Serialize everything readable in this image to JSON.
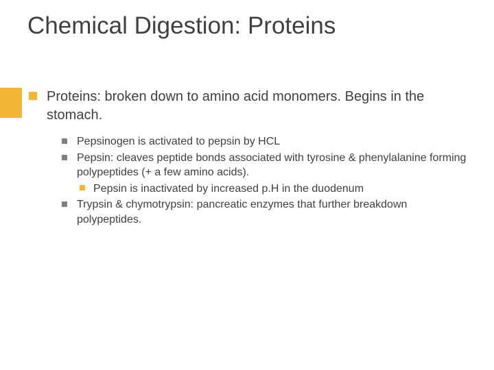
{
  "accent_color": "#f3b735",
  "bullet1_color": "#f3b735",
  "bullet2_color": "#808080",
  "bullet3_color": "#f3b735",
  "title": {
    "text": "Chemical Digestion: Proteins",
    "fontsize": 35,
    "color": "#404040"
  },
  "main": {
    "text": "Proteins: broken down to amino acid monomers. Begins in the stomach.",
    "fontsize": 20
  },
  "subs": [
    {
      "text": "Pepsinogen is activated to pepsin by HCL",
      "fontsize": 16,
      "children": []
    },
    {
      "text": "Pepsin: cleaves peptide bonds associated with tyrosine & phenylalanine forming polypeptides (+ a few amino acids).",
      "fontsize": 16,
      "children": [
        {
          "text": "Pepsin is inactivated by increased p.H in the duodenum",
          "fontsize": 16
        }
      ]
    },
    {
      "text": "Trypsin & chymotrypsin: pancreatic enzymes that further breakdown polypeptides.",
      "fontsize": 16,
      "children": []
    }
  ]
}
